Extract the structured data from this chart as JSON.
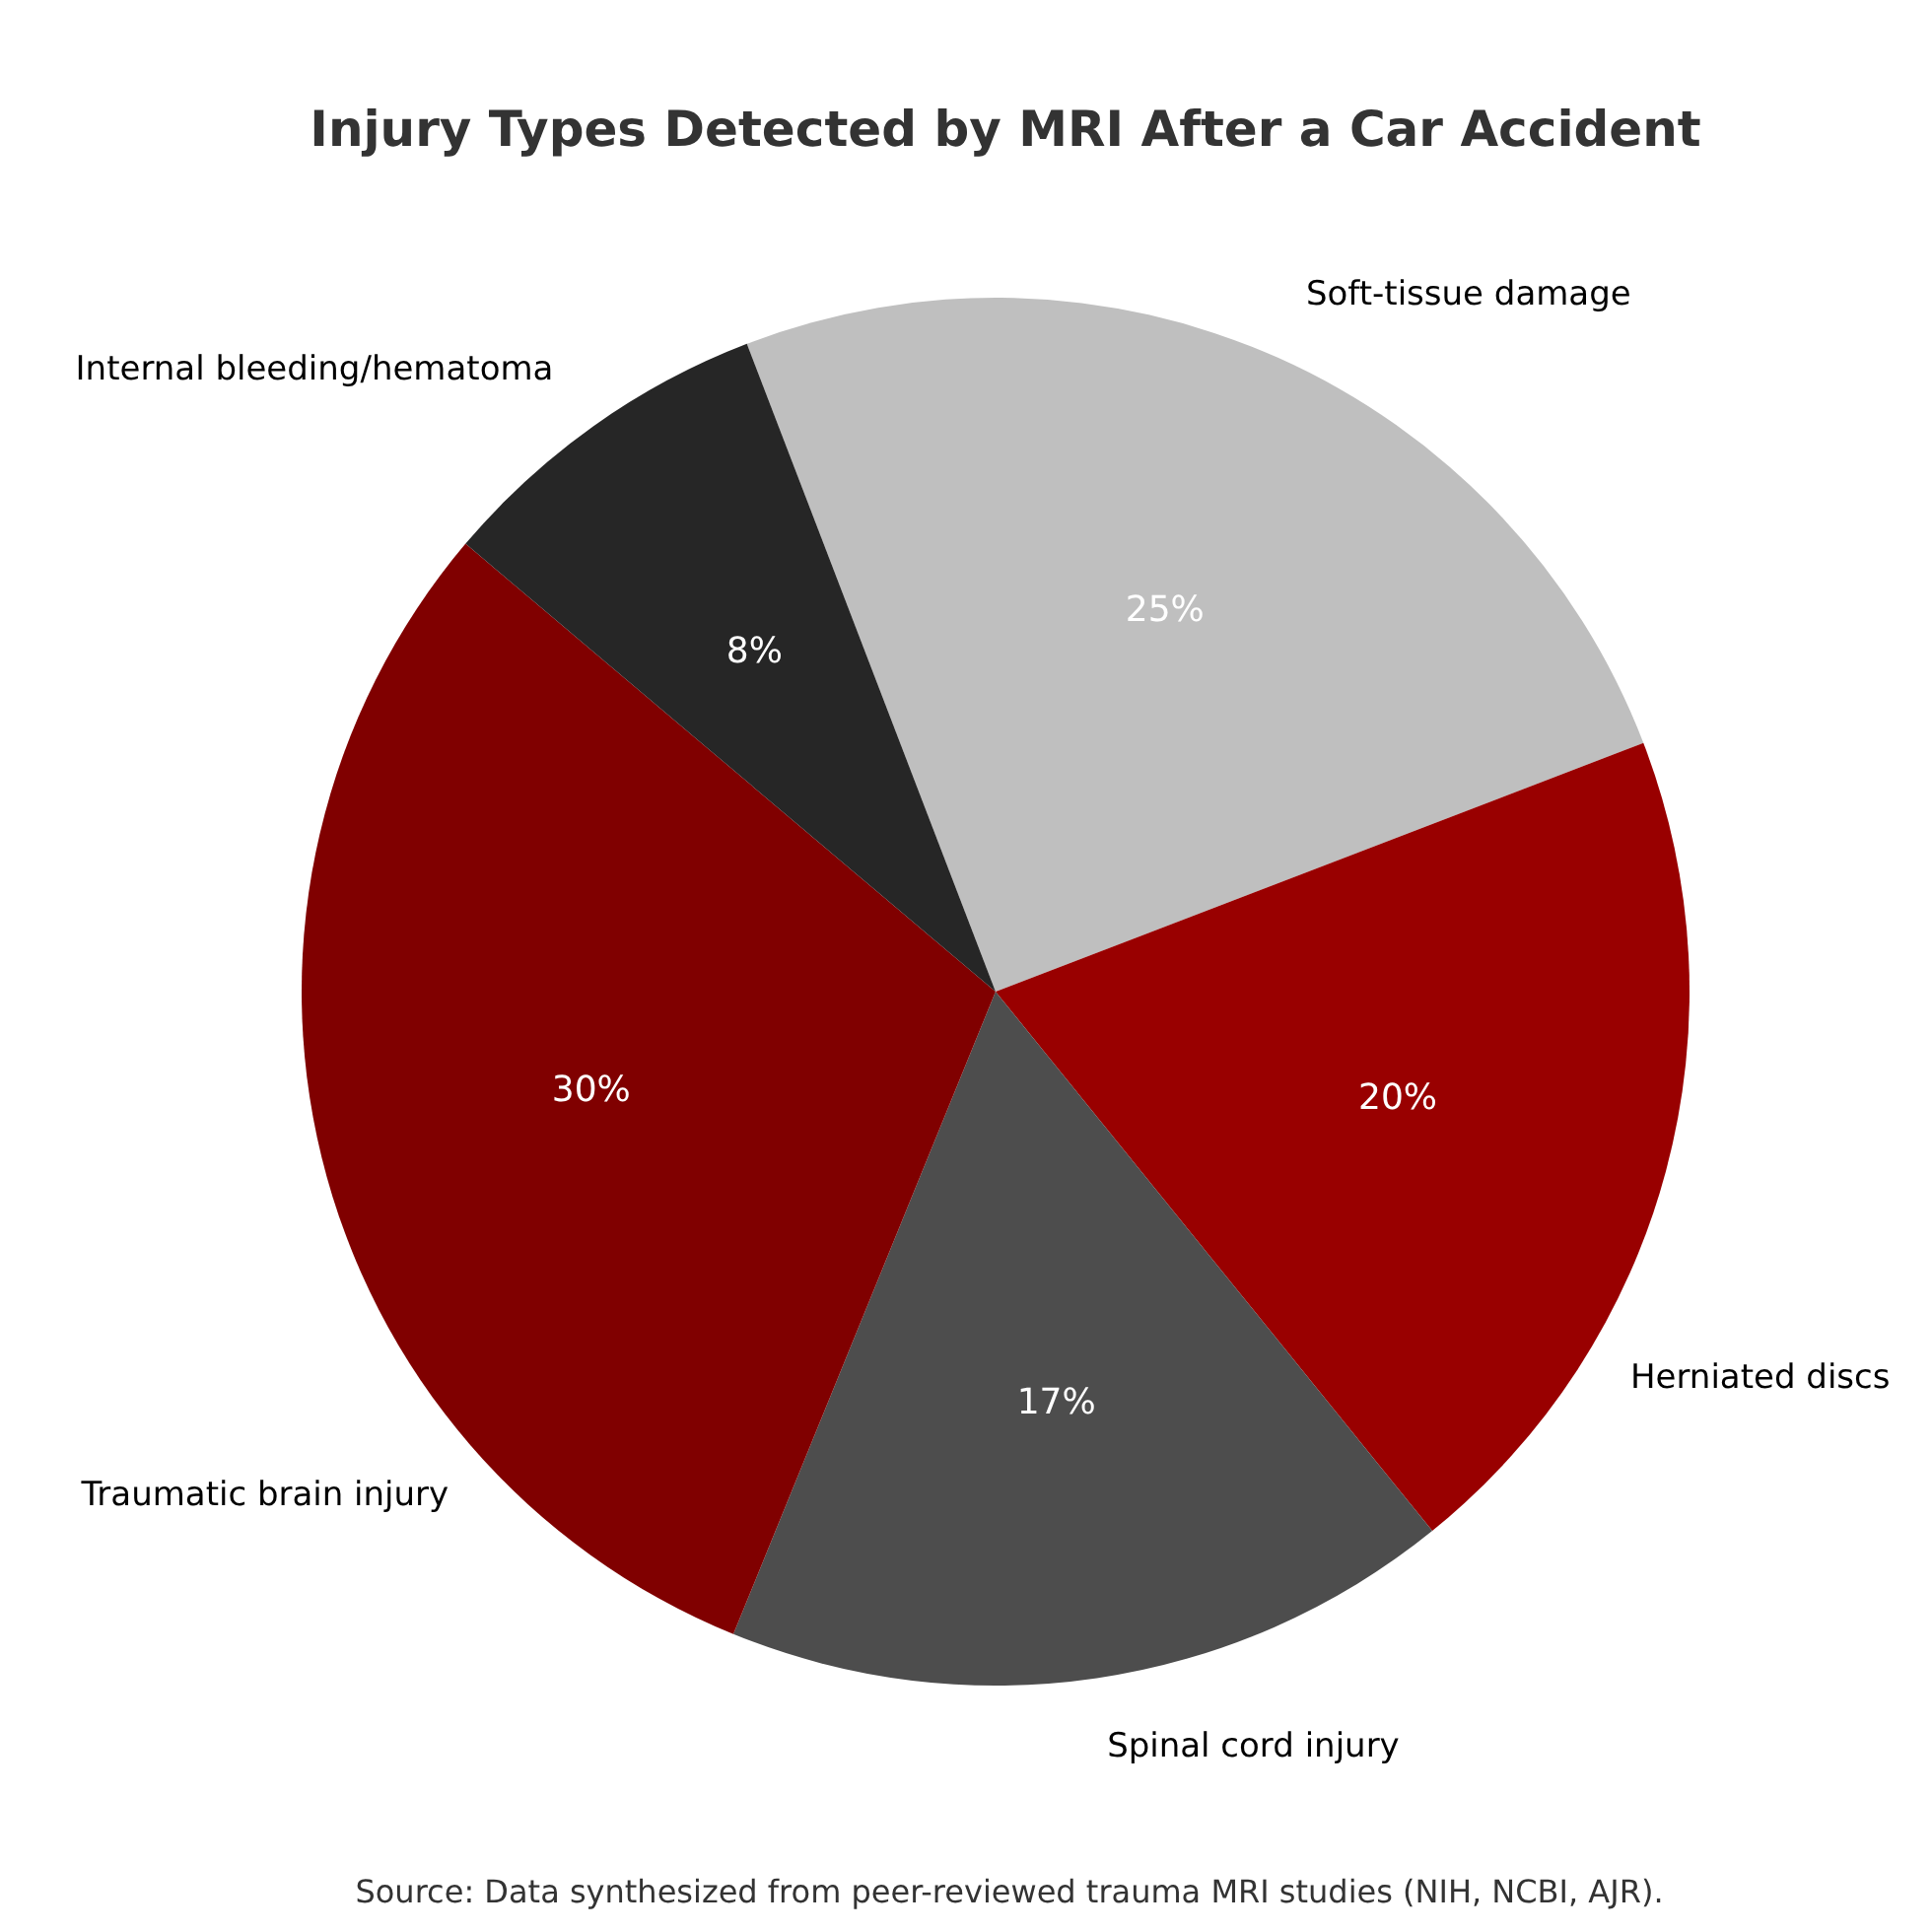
{
  "chart_data": {
    "type": "pie",
    "title": "Injury Types Detected by MRI After a Car Accident",
    "categories": [
      "Soft-tissue damage",
      "Herniated discs",
      "Spinal cord injury",
      "Traumatic brain injury",
      "Internal bleeding/hematoma"
    ],
    "values": [
      25,
      20,
      17,
      30,
      8
    ],
    "colors": [
      "#bfbfbf",
      "#990000",
      "#4d4d4d",
      "#800000",
      "#262626"
    ],
    "value_labels": [
      "25%",
      "20%",
      "17%",
      "30%",
      "8%"
    ],
    "annotations": [
      "Source: Data synthesized from peer-reviewed trauma MRI studies (NIH, NCBI, AJR)."
    ]
  }
}
